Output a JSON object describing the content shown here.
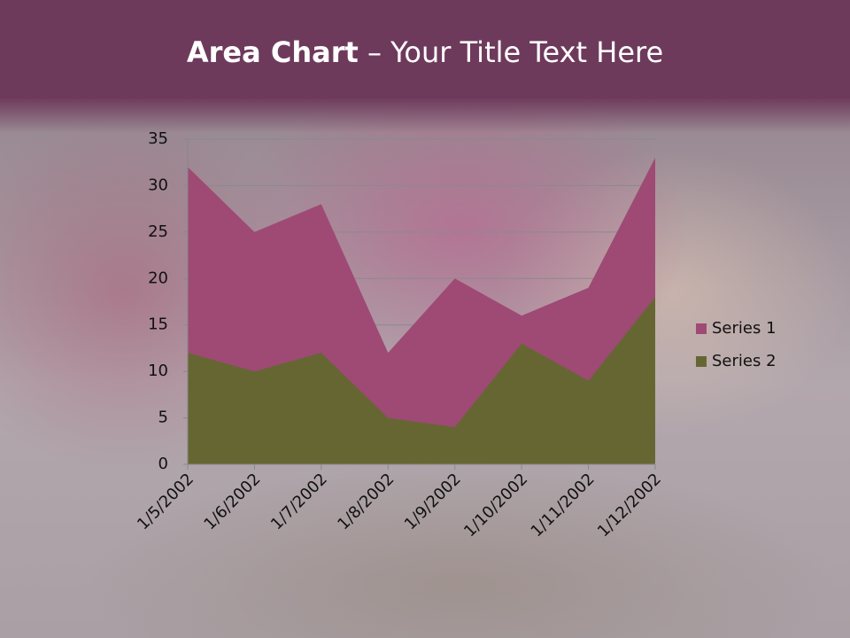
{
  "chart_data": {
    "type": "area",
    "title": {
      "bold": "Area Chart",
      "rest": "– Your Title Text Here"
    },
    "categories": [
      "1/5/2002",
      "1/6/2002",
      "1/7/2002",
      "1/8/2002",
      "1/9/2002",
      "1/10/2002",
      "1/11/2002",
      "1/12/2002"
    ],
    "series": [
      {
        "name": "Series 1",
        "color": "#9e4a74",
        "values": [
          32,
          25,
          28,
          12,
          20,
          16,
          19,
          33
        ]
      },
      {
        "name": "Series 2",
        "color": "#666633",
        "values": [
          12,
          10,
          12,
          5,
          4,
          13,
          9,
          18
        ]
      }
    ],
    "ylim": [
      0,
      35
    ],
    "yticks": [
      0,
      5,
      10,
      15,
      20,
      25,
      30,
      35
    ],
    "grid": true,
    "legend": "right"
  }
}
